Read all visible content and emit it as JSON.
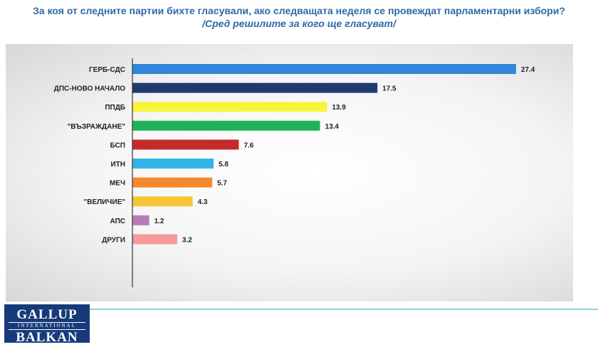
{
  "header": {
    "title": "За коя от следните партии бихте  гласували,  ако следващата неделя се провеждат парламентарни избори?",
    "subtitle": "/Сред решилите за кого ще гласуват/"
  },
  "logo": {
    "top": "GALLUP",
    "middle": "INTERNATIONAL",
    "bottom": "BALKAN"
  },
  "chart_data": {
    "type": "bar",
    "orientation": "horizontal",
    "title": "",
    "xlabel": "",
    "ylabel": "",
    "xlim": [
      0,
      30
    ],
    "grid": false,
    "legend": "none",
    "categories": [
      "ГЕРБ-СДС",
      "ДПС-НОВО НАЧАЛО",
      "ППДБ",
      "\"ВЪЗРАЖДАНЕ\"",
      "БСП",
      "ИТН",
      "МЕЧ",
      "\"ВЕЛИЧИЕ\"",
      "АПС",
      "ДРУГИ"
    ],
    "values": [
      27.4,
      17.5,
      13.9,
      13.4,
      7.6,
      5.8,
      5.7,
      4.3,
      1.2,
      3.2
    ],
    "value_labels": [
      "27.4",
      "17.5",
      "13.9",
      "13.4",
      "7.6",
      "5.8",
      "5.7",
      "4.3",
      "1.2",
      "3.2"
    ],
    "colors": [
      "#2f86d9",
      "#1f3a6e",
      "#f5f53a",
      "#22b35a",
      "#c42b2b",
      "#33b3ea",
      "#f58a2c",
      "#f6c535",
      "#b87ab8",
      "#f59a9a"
    ]
  }
}
